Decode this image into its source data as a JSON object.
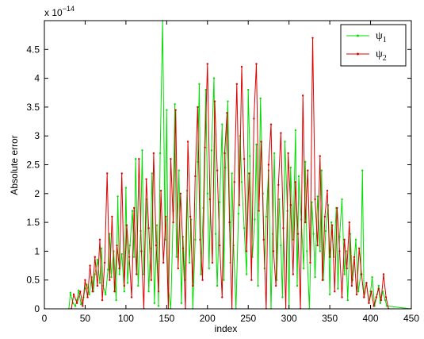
{
  "chart_data": {
    "type": "line",
    "xlabel": "index",
    "ylabel": "Absolute error",
    "scale_multiplier_label": "x 10",
    "scale_exponent_label": "−14",
    "xlim": [
      0,
      450
    ],
    "ylim": [
      0,
      5
    ],
    "x_ticks": [
      0,
      50,
      100,
      150,
      200,
      250,
      300,
      350,
      400,
      450
    ],
    "x_tick_labels": [
      "0",
      "50",
      "100",
      "150",
      "200",
      "250",
      "300",
      "350",
      "400",
      "450"
    ],
    "y_ticks": [
      0,
      0.5,
      1,
      1.5,
      2,
      2.5,
      3,
      3.5,
      4,
      4.5
    ],
    "y_tick_labels": [
      "0",
      "0.5",
      "1",
      "1.5",
      "2",
      "2.5",
      "3",
      "3.5",
      "4",
      "4.5"
    ],
    "grid": false,
    "legend_position": "top-right",
    "series": [
      {
        "name": "ψ1",
        "name_base": "ψ",
        "name_sub": "1",
        "color": "#00dd00",
        "x": [
          0,
          30,
          32,
          35,
          38,
          40,
          42,
          45,
          48,
          50,
          52,
          55,
          58,
          60,
          62,
          65,
          68,
          70,
          72,
          75,
          78,
          80,
          82,
          85,
          88,
          90,
          92,
          95,
          98,
          100,
          102,
          105,
          108,
          110,
          112,
          115,
          118,
          120,
          122,
          125,
          128,
          130,
          132,
          135,
          138,
          140,
          142,
          145,
          148,
          150,
          152,
          155,
          158,
          160,
          162,
          165,
          168,
          170,
          172,
          175,
          178,
          180,
          182,
          185,
          188,
          190,
          192,
          195,
          198,
          200,
          202,
          205,
          208,
          210,
          212,
          215,
          218,
          220,
          222,
          225,
          228,
          230,
          232,
          235,
          238,
          240,
          242,
          245,
          248,
          250,
          252,
          255,
          258,
          260,
          262,
          265,
          268,
          270,
          272,
          275,
          278,
          280,
          282,
          285,
          288,
          290,
          292,
          295,
          298,
          300,
          302,
          305,
          308,
          310,
          312,
          315,
          318,
          320,
          322,
          325,
          328,
          330,
          332,
          335,
          338,
          340,
          342,
          345,
          348,
          350,
          352,
          355,
          358,
          360,
          362,
          365,
          368,
          370,
          372,
          375,
          378,
          380,
          382,
          385,
          388,
          390,
          392,
          395,
          398,
          400,
          402,
          405,
          408,
          410,
          412,
          415,
          418,
          420,
          450
        ],
        "y": [
          0,
          0,
          0.28,
          0.1,
          0.05,
          0.15,
          0.32,
          0.08,
          0.2,
          0.35,
          0.42,
          0.25,
          0.55,
          0.3,
          0.6,
          0.85,
          0.45,
          1.05,
          0.4,
          0.25,
          0.68,
          1.3,
          0.55,
          1.0,
          0.15,
          1.95,
          0.6,
          0.95,
          0.3,
          2.1,
          0.45,
          1.1,
          1.7,
          0.9,
          2.6,
          0.4,
          1.35,
          2.75,
          0.6,
          1.9,
          0.3,
          1.05,
          2.35,
          0.1,
          1.45,
          0.05,
          2.7,
          5.0,
          1.2,
          3.45,
          0.35,
          0.0,
          1.7,
          3.55,
          0.9,
          2.4,
          0.1,
          1.25,
          0.5,
          2.05,
          0.8,
          1.55,
          0.0,
          1.2,
          2.55,
          3.9,
          0.6,
          1.75,
          3.8,
          2.0,
          0.7,
          2.75,
          4.0,
          1.3,
          0.4,
          1.85,
          3.2,
          0.5,
          2.45,
          3.6,
          0.8,
          2.35,
          1.1,
          0.0,
          1.65,
          3.0,
          2.2,
          1.4,
          0.6,
          3.8,
          2.65,
          0.9,
          1.55,
          2.85,
          0.4,
          3.65,
          2.0,
          0.7,
          1.6,
          2.4,
          0.0,
          1.3,
          2.7,
          0.5,
          1.9,
          1.1,
          0.2,
          2.9,
          1.7,
          0.0,
          2.45,
          1.2,
          3.1,
          0.4,
          2.3,
          1.55,
          0.7,
          2.55,
          1.0,
          0.0,
          1.85,
          1.3,
          0.55,
          1.95,
          1.0,
          2.4,
          0.5,
          1.35,
          1.8,
          0.25,
          1.5,
          0.9,
          1.75,
          0.35,
          1.25,
          1.9,
          0.6,
          1.0,
          0.15,
          1.3,
          0.5,
          0.85,
          1.2,
          0.3,
          0.6,
          2.4,
          0.2,
          0.45,
          0.1,
          0.3,
          0.55,
          0.05,
          0.25,
          0.4,
          0.1,
          0.3,
          0.15,
          0.05,
          0
        ]
      },
      {
        "name": "ψ2",
        "name_base": "ψ",
        "name_sub": "2",
        "color": "#dd0000",
        "x": [
          0,
          33,
          36,
          40,
          44,
          47,
          50,
          53,
          56,
          59,
          62,
          65,
          68,
          71,
          74,
          77,
          80,
          83,
          86,
          89,
          92,
          95,
          98,
          101,
          104,
          107,
          110,
          113,
          116,
          119,
          122,
          125,
          128,
          131,
          134,
          137,
          140,
          143,
          146,
          149,
          152,
          155,
          158,
          161,
          164,
          167,
          170,
          173,
          176,
          179,
          182,
          185,
          188,
          191,
          194,
          197,
          200,
          203,
          206,
          209,
          212,
          215,
          218,
          221,
          224,
          227,
          230,
          233,
          236,
          239,
          242,
          245,
          248,
          251,
          254,
          257,
          260,
          263,
          266,
          269,
          272,
          275,
          278,
          281,
          284,
          287,
          290,
          293,
          296,
          299,
          302,
          305,
          308,
          311,
          314,
          317,
          320,
          323,
          326,
          329,
          332,
          335,
          338,
          341,
          344,
          347,
          350,
          353,
          356,
          359,
          362,
          365,
          368,
          371,
          374,
          377,
          380,
          383,
          386,
          389,
          392,
          395,
          398,
          401,
          404,
          407,
          410,
          413,
          416,
          419,
          422,
          450
        ],
        "y": [
          0,
          0,
          0.25,
          0.1,
          0.3,
          0.05,
          0.5,
          0.2,
          0.75,
          0.3,
          0.9,
          0.4,
          1.2,
          0.15,
          0.8,
          2.35,
          0.5,
          1.6,
          0.3,
          1.1,
          0.7,
          2.35,
          0.4,
          1.45,
          0.9,
          0.2,
          1.75,
          0.6,
          2.6,
          1.0,
          0.0,
          2.25,
          1.4,
          0.5,
          2.7,
          1.1,
          0.3,
          2.05,
          0.8,
          1.6,
          0.0,
          2.6,
          1.5,
          3.45,
          0.7,
          2.0,
          1.05,
          0.0,
          2.9,
          1.6,
          0.4,
          2.3,
          3.5,
          1.2,
          0.5,
          2.8,
          4.25,
          1.9,
          0.8,
          3.6,
          2.4,
          1.1,
          0.2,
          2.7,
          3.4,
          1.5,
          0.0,
          2.2,
          3.9,
          1.8,
          4.2,
          2.6,
          1.0,
          2.35,
          0.5,
          3.3,
          4.25,
          1.7,
          2.9,
          1.2,
          0.0,
          2.5,
          3.2,
          1.0,
          0.4,
          2.15,
          3.05,
          1.4,
          0.0,
          2.7,
          1.8,
          0.6,
          2.2,
          1.3,
          0.0,
          3.7,
          1.5,
          2.4,
          0.8,
          4.7,
          1.9,
          1.1,
          2.65,
          0.5,
          1.6,
          2.05,
          0.9,
          1.45,
          0.3,
          1.75,
          1.0,
          0.2,
          1.2,
          0.7,
          1.5,
          0.4,
          0.9,
          0.25,
          1.05,
          0.6,
          0.2,
          0.45,
          0.1,
          0.3,
          0.05,
          0.2,
          0.35,
          0.15,
          0.6,
          0.2,
          0,
          0
        ]
      }
    ]
  }
}
